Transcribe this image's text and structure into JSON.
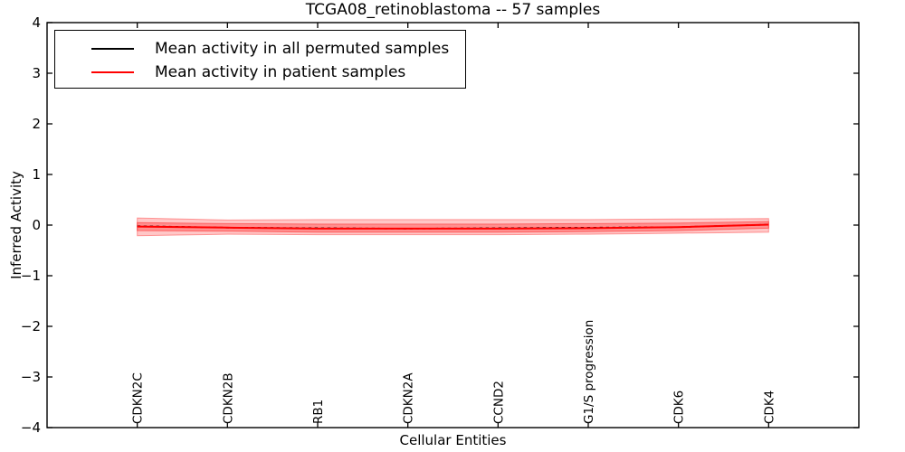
{
  "chart_data": {
    "type": "line",
    "title": "TCGA08_retinoblastoma -- 57 samples",
    "xlabel": "Cellular Entities",
    "ylabel": "Inferred Activity",
    "ylim": [
      -4,
      4
    ],
    "yticks": [
      4,
      3,
      2,
      1,
      0,
      -1,
      -2,
      -3,
      -4
    ],
    "grid": false,
    "legend_position": "upper left",
    "categories": [
      "CDKN2C",
      "CDKN2B",
      "RB1",
      "CDKN2A",
      "CCND2",
      "G1/S progression",
      "CDK6",
      "CDK4"
    ],
    "legend": [
      {
        "label": "Mean activity in all permuted samples",
        "color": "#000000"
      },
      {
        "label": "Mean activity in patient samples",
        "color": "#ff0000"
      }
    ],
    "series": [
      {
        "name": "Mean activity in all permuted samples",
        "color": "#000000",
        "style": "dashed",
        "values": [
          -0.02,
          -0.05,
          -0.06,
          -0.07,
          -0.06,
          -0.05,
          -0.04,
          0.01
        ]
      },
      {
        "name": "Mean activity in patient samples",
        "color": "#ff0000",
        "style": "solid",
        "values": [
          -0.03,
          -0.05,
          -0.07,
          -0.07,
          -0.07,
          -0.06,
          -0.04,
          0.01
        ]
      }
    ],
    "bands": [
      {
        "name": "patient-band-outer",
        "color": "#ff0000",
        "opacity": 0.22,
        "upper": [
          0.14,
          0.1,
          0.11,
          0.11,
          0.11,
          0.11,
          0.12,
          0.13
        ],
        "lower": [
          -0.21,
          -0.18,
          -0.19,
          -0.19,
          -0.19,
          -0.18,
          -0.16,
          -0.14
        ]
      },
      {
        "name": "patient-band-inner",
        "color": "#ff0000",
        "opacity": 0.28,
        "upper": [
          0.05,
          0.03,
          0.02,
          0.02,
          0.02,
          0.03,
          0.04,
          0.07
        ],
        "lower": [
          -0.11,
          -0.12,
          -0.14,
          -0.14,
          -0.14,
          -0.13,
          -0.11,
          -0.06
        ]
      }
    ]
  }
}
